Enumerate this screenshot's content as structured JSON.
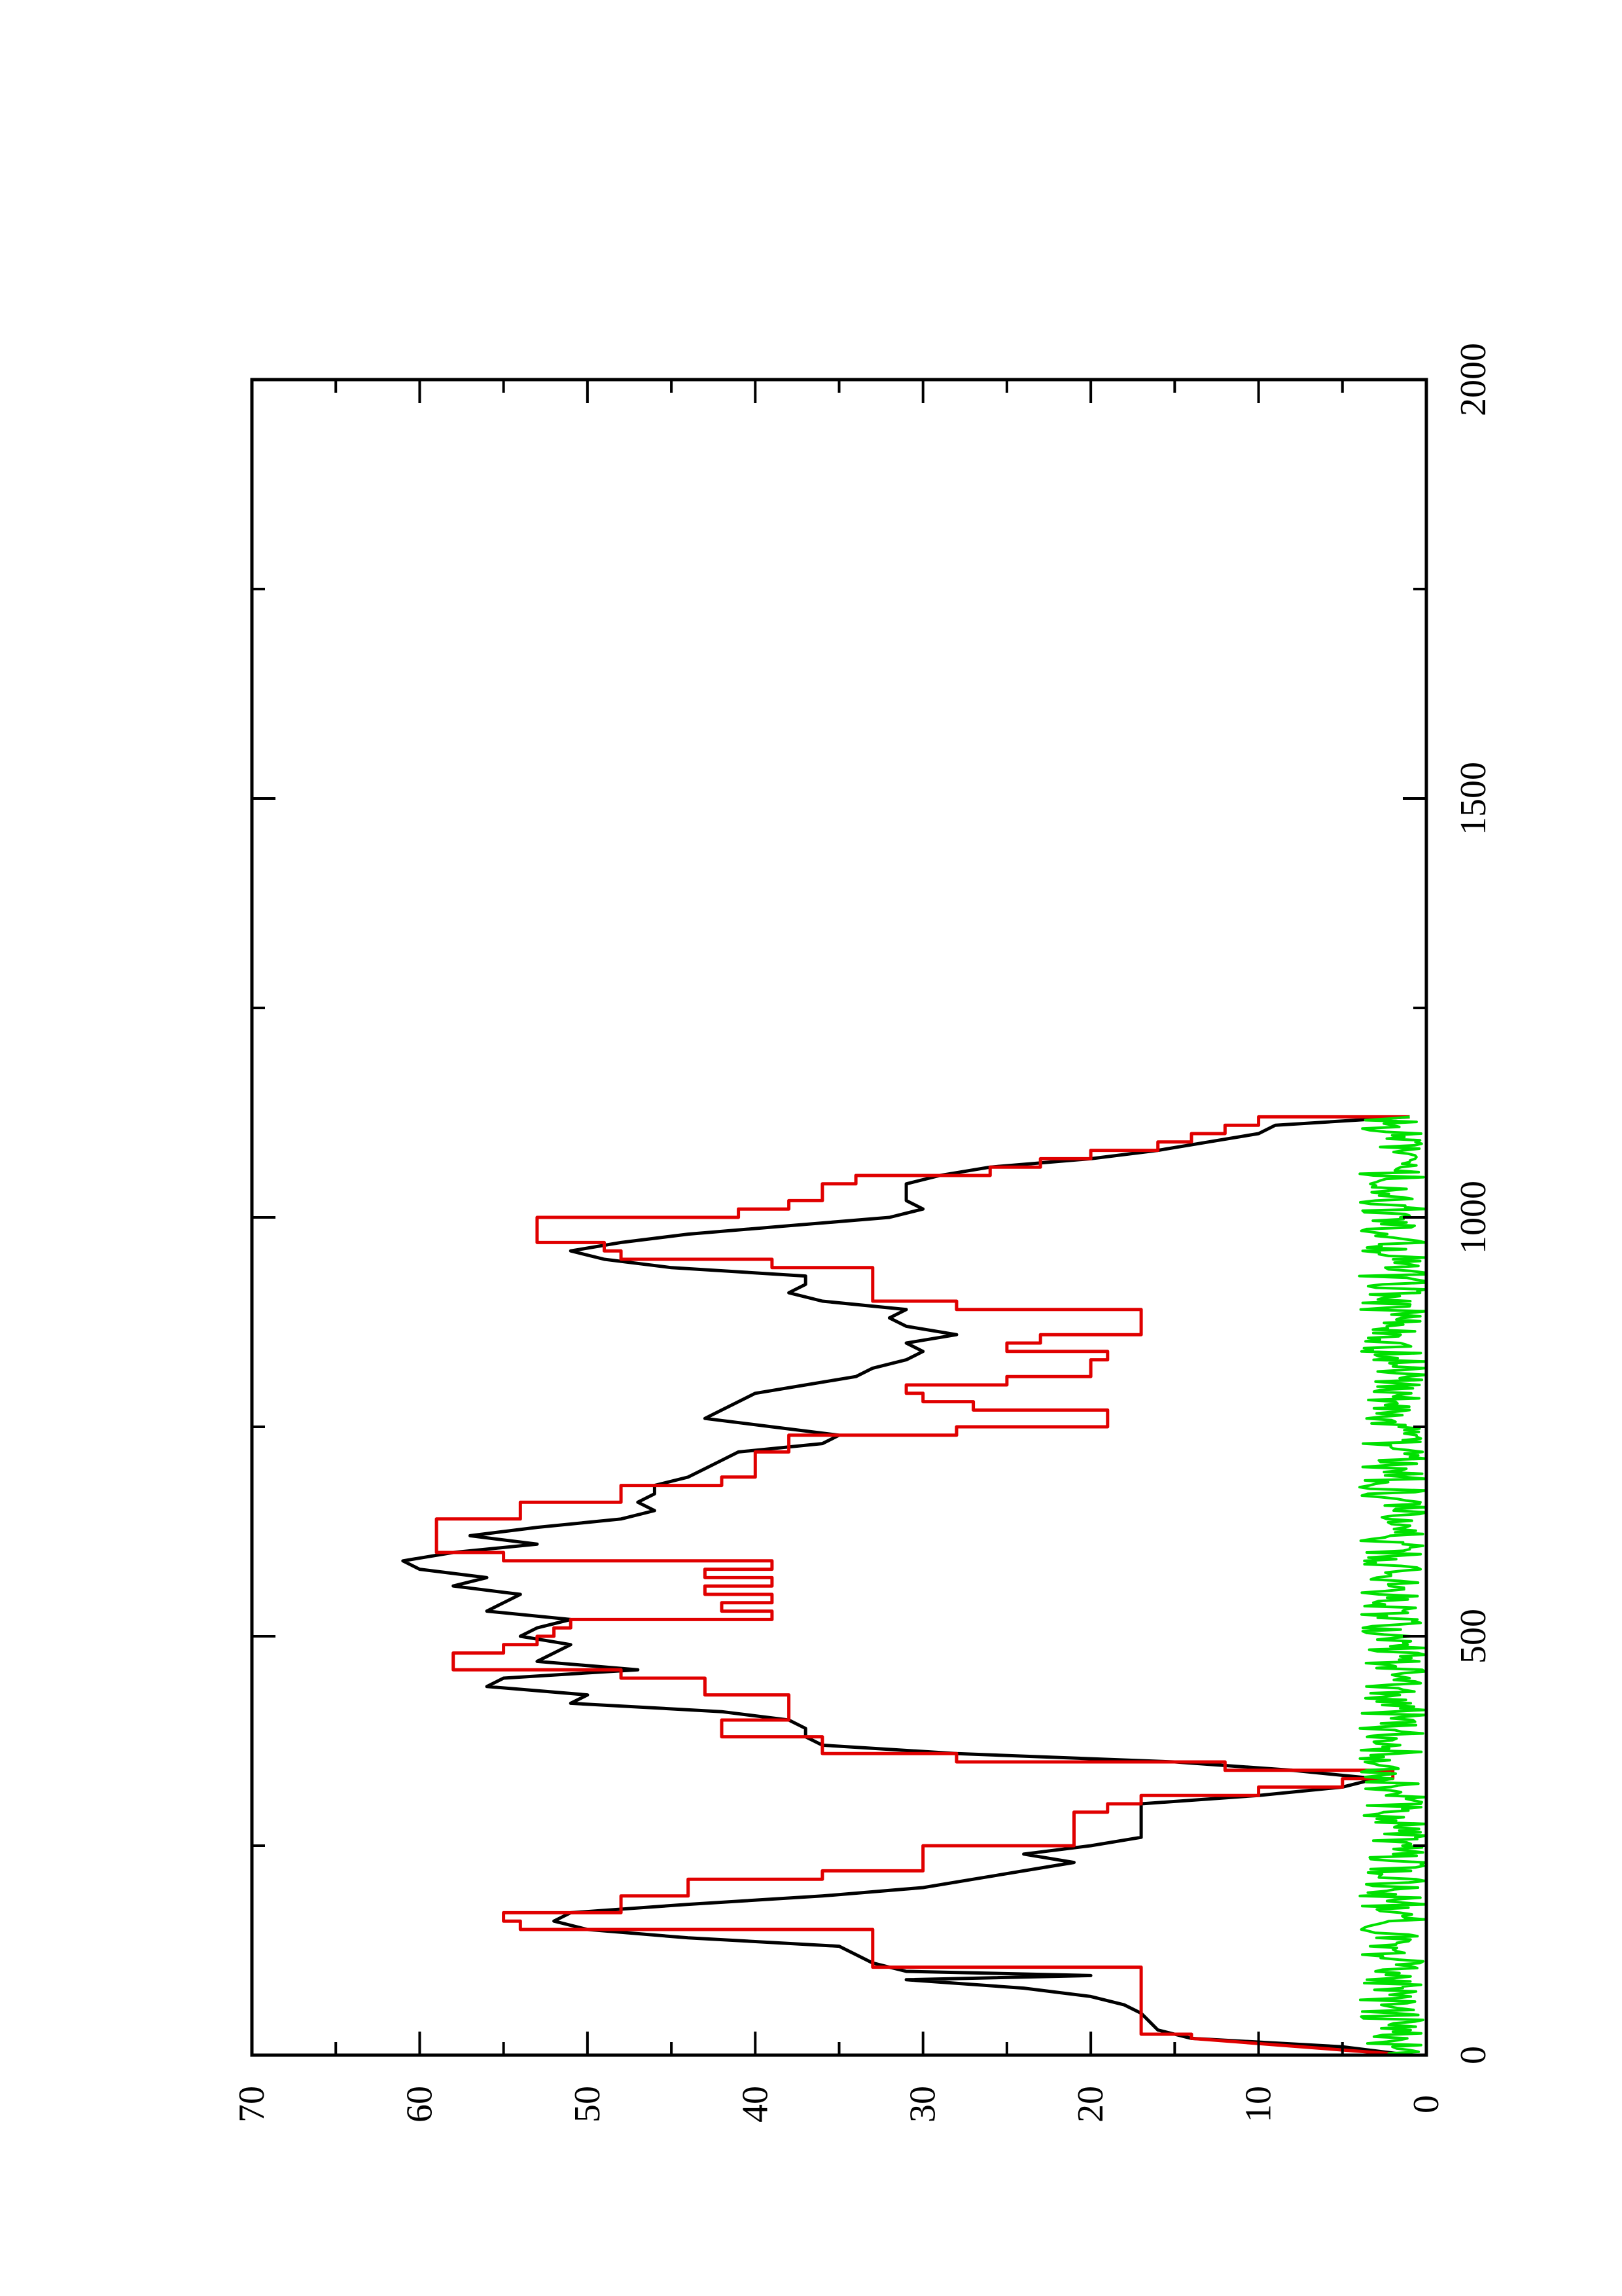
{
  "chart_data": {
    "type": "line",
    "rotation": "rotated 90 degrees counter-clockwise",
    "title": "",
    "xlabel": "",
    "ylabel": "",
    "xlim": [
      0,
      2000
    ],
    "ylim": [
      0,
      70
    ],
    "x_ticks": [
      0,
      500,
      1000,
      1500,
      2000
    ],
    "x_tick_labels": [
      "0",
      "500",
      "1000",
      "1500",
      "2000"
    ],
    "y_ticks": [
      0,
      10,
      20,
      30,
      40,
      50,
      60,
      70
    ],
    "y_tick_labels": [
      "0",
      "10",
      "20",
      "30",
      "40",
      "50",
      "60",
      "70"
    ],
    "grid": false,
    "legend": "none",
    "series": [
      {
        "color": "#000000",
        "style": "line",
        "x": [
          0,
          10,
          20,
          30,
          40,
          50,
          60,
          70,
          80,
          90,
          95,
          100,
          110,
          120,
          130,
          140,
          150,
          160,
          170,
          180,
          190,
          200,
          210,
          220,
          230,
          240,
          250,
          260,
          270,
          280,
          290,
          300,
          310,
          320,
          330,
          340,
          350,
          360,
          370,
          380,
          390,
          400,
          410,
          420,
          430,
          440,
          450,
          460,
          470,
          480,
          490,
          500,
          510,
          520,
          530,
          540,
          550,
          560,
          570,
          580,
          590,
          600,
          610,
          620,
          630,
          640,
          650,
          660,
          670,
          680,
          690,
          700,
          710,
          720,
          730,
          740,
          750,
          760,
          770,
          780,
          790,
          800,
          810,
          820,
          830,
          840,
          850,
          860,
          870,
          880,
          890,
          900,
          910,
          920,
          930,
          940,
          950,
          960,
          970,
          980,
          990,
          1000,
          1010,
          1020,
          1030,
          1040,
          1050,
          1060,
          1070,
          1080,
          1090,
          1100,
          1110,
          1120
        ],
        "y": [
          1,
          5,
          14,
          16,
          16.5,
          17,
          18,
          20,
          24,
          31,
          20,
          31,
          33,
          34,
          35,
          44,
          50,
          52,
          51,
          44,
          36,
          30,
          27,
          24,
          21,
          24,
          20,
          17,
          17,
          17,
          17,
          17,
          10,
          5,
          3,
          8,
          15,
          28,
          36,
          37,
          37,
          38,
          42,
          51,
          50,
          56,
          55,
          47,
          53,
          52,
          51,
          54,
          53,
          51,
          56,
          55,
          54,
          58,
          56,
          60,
          61,
          58,
          53,
          57,
          53,
          48,
          46,
          47,
          46,
          46,
          44,
          43,
          42,
          41,
          36,
          35,
          39,
          43,
          42,
          41,
          40,
          37,
          34,
          33,
          31,
          30,
          31,
          28,
          31,
          32,
          31,
          36,
          38,
          37,
          37,
          45,
          49,
          51,
          48,
          44,
          38,
          32,
          30,
          31,
          31,
          31,
          29,
          26,
          20,
          16,
          13,
          10,
          9,
          1
        ],
        "name": ""
      },
      {
        "color": "#e00000",
        "style": "step",
        "x": [
          0,
          20,
          25,
          100,
          105,
          150,
          160,
          170,
          190,
          210,
          220,
          250,
          290,
          300,
          310,
          320,
          330,
          340,
          350,
          360,
          370,
          380,
          400,
          420,
          430,
          450,
          460,
          470,
          480,
          490,
          500,
          510,
          520,
          530,
          540,
          550,
          560,
          570,
          580,
          590,
          600,
          620,
          640,
          660,
          680,
          690,
          700,
          720,
          740,
          750,
          760,
          770,
          780,
          790,
          800,
          810,
          820,
          830,
          840,
          850,
          860,
          870,
          880,
          890,
          900,
          920,
          940,
          950,
          960,
          970,
          1000,
          1010,
          1020,
          1040,
          1050,
          1060,
          1070,
          1080,
          1090,
          1100,
          1110,
          1120
        ],
        "y": [
          1,
          14,
          17,
          17,
          33,
          54,
          55,
          48,
          44,
          36,
          30,
          21,
          19,
          17,
          10,
          5,
          2,
          12,
          28,
          36,
          36,
          42,
          38,
          38,
          43,
          48,
          58,
          58,
          55,
          53,
          52,
          51,
          39,
          42,
          39,
          43,
          39,
          43,
          39,
          55,
          59,
          59,
          54,
          48,
          42,
          40,
          40,
          38,
          28,
          19,
          19,
          27,
          30,
          31,
          25,
          20,
          20,
          19,
          25,
          23,
          17,
          17,
          17,
          28,
          33,
          33,
          39,
          48,
          49,
          53,
          41,
          38,
          36,
          34,
          26,
          23,
          20,
          16,
          14,
          12,
          10,
          1
        ],
        "name": ""
      },
      {
        "color": "#00e000",
        "style": "noise",
        "x_range": [
          0,
          1120
        ],
        "y_range": [
          0,
          4
        ],
        "name": ""
      }
    ]
  }
}
